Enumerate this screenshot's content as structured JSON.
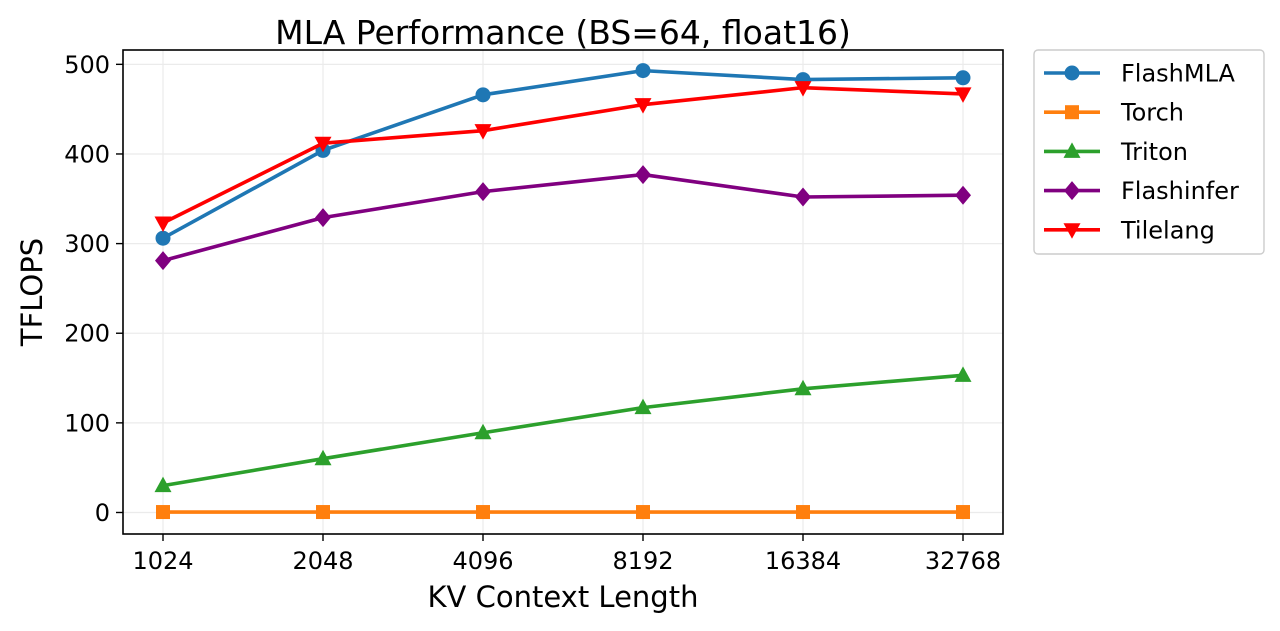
{
  "chart_data": {
    "type": "line",
    "title": "MLA Performance (BS=64, float16)",
    "xlabel": "KV Context Length",
    "ylabel": "TFLOPS",
    "categories": [
      "1024",
      "2048",
      "4096",
      "8192",
      "16384",
      "32768"
    ],
    "ylim": [
      -24,
      516
    ],
    "yticks": [
      0,
      100,
      200,
      300,
      400,
      500
    ],
    "grid": true,
    "legend_position": "outside-top-right",
    "series": [
      {
        "name": "FlashMLA",
        "color": "#1f77b4",
        "marker": "circle",
        "values": [
          306,
          404,
          466,
          493,
          483,
          485
        ]
      },
      {
        "name": "Torch",
        "color": "#ff7f0e",
        "marker": "square",
        "values": [
          0.5,
          0.5,
          0.5,
          0.5,
          0.5,
          0.5
        ]
      },
      {
        "name": "Triton",
        "color": "#2ca02c",
        "marker": "triangle-up",
        "values": [
          30,
          60,
          89,
          117,
          138,
          153
        ]
      },
      {
        "name": "Flashinfer",
        "color": "#800080",
        "marker": "diamond",
        "values": [
          281,
          329,
          358,
          377,
          352,
          354
        ]
      },
      {
        "name": "Tilelang",
        "color": "#ff0000",
        "marker": "triangle-down",
        "values": [
          323,
          412,
          426,
          455,
          474,
          467
        ]
      }
    ]
  }
}
